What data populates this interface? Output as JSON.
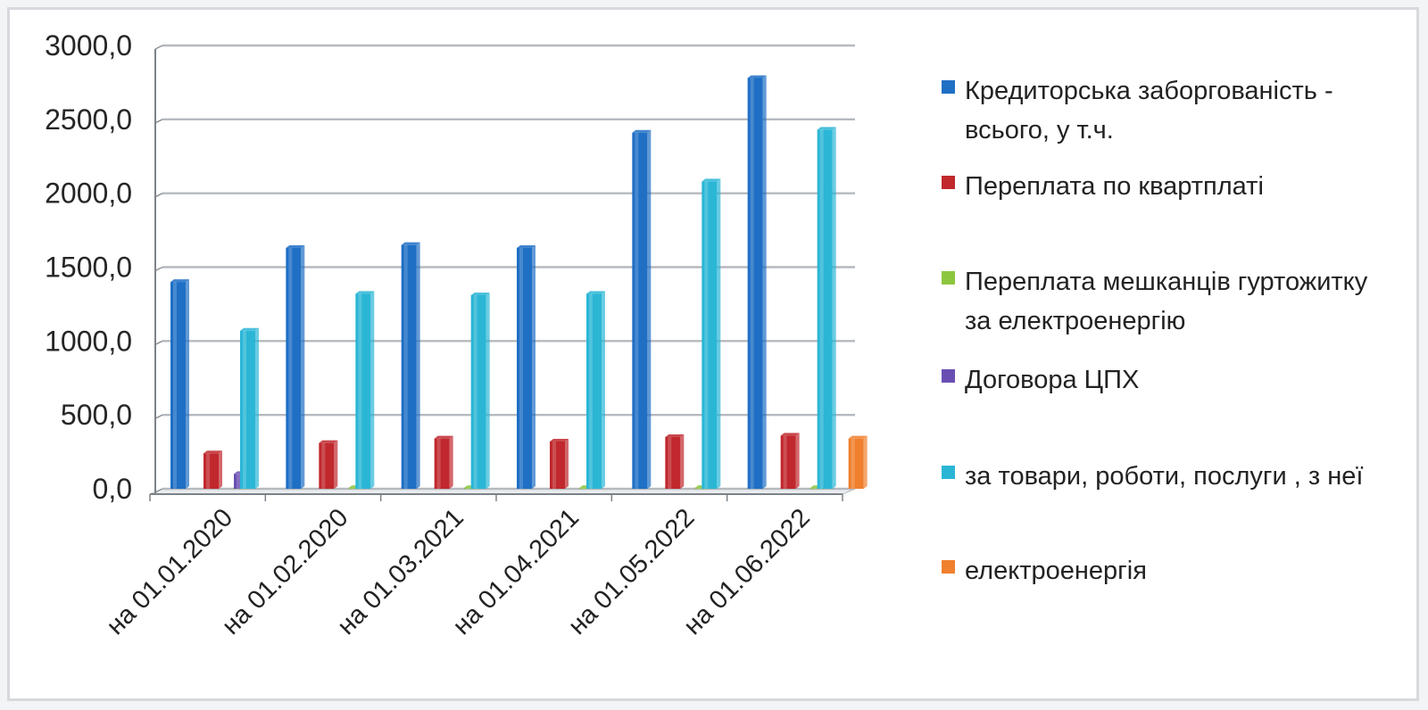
{
  "chart_data": {
    "type": "bar",
    "categories": [
      "на 01.01.2020",
      "на 01.02.2020",
      "на 01.03.2021",
      "на 01.04.2021",
      "на 01.05.2022",
      "на 01.06.2022"
    ],
    "series": [
      {
        "name": "Кредиторська заборгованість - всього, у т.ч.",
        "color": "#1f6fc5",
        "values": [
          1400,
          1630,
          1650,
          1630,
          2410,
          2780
        ]
      },
      {
        "name": "Переплата по  квартплаті",
        "color": "#c0282d",
        "values": [
          240,
          310,
          340,
          320,
          350,
          360
        ]
      },
      {
        "name": "Переплата мешканців гуртожитку за електроенергію",
        "color": "#8cc63f",
        "values": [
          5,
          5,
          5,
          5,
          5,
          5
        ]
      },
      {
        "name": "Договора ЦПХ",
        "color": "#6a4fb3",
        "values": [
          100,
          0,
          0,
          0,
          0,
          0
        ]
      },
      {
        "name": "за товари, роботи, послуги , з неї",
        "color": "#2bb6d6",
        "values": [
          1070,
          1320,
          1310,
          1320,
          2080,
          2430
        ]
      },
      {
        "name": "електроенергія",
        "color": "#f07f2e",
        "values": [
          0,
          0,
          0,
          0,
          0,
          340
        ]
      }
    ],
    "yticks": [
      "0,0",
      "500,0",
      "1000,0",
      "1500,0",
      "2000,0",
      "2500,0",
      "3000,0"
    ],
    "ylim": [
      0,
      3000
    ],
    "grid": true,
    "legend_position": "right"
  }
}
